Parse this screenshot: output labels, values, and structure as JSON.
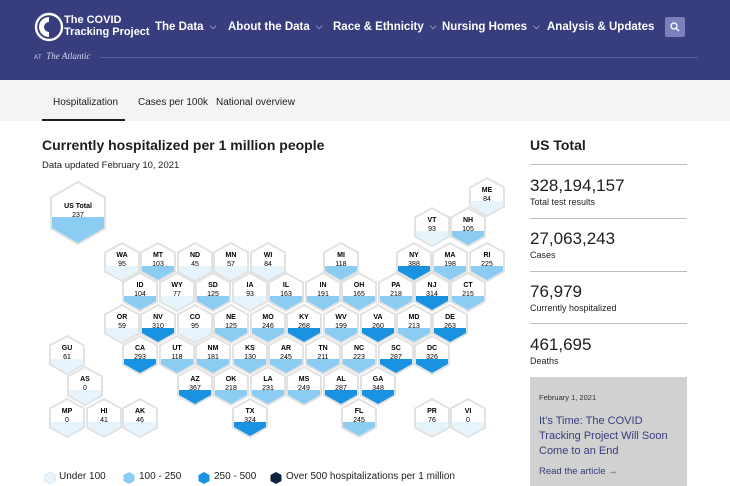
{
  "header": {
    "logo_text": "The COVID Tracking Project",
    "at_label": "AT",
    "publisher": "The Atlantic",
    "nav": [
      {
        "label": "The Data"
      },
      {
        "label": "About the Data"
      },
      {
        "label": "Race & Ethnicity"
      },
      {
        "label": "Nursing Homes"
      },
      {
        "label": "Analysis & Updates"
      }
    ],
    "icons": {
      "logo": "ctp-circle-logo",
      "search": "search-icon",
      "chevron": "chevron-down-icon"
    }
  },
  "tabs": [
    {
      "label": "Hospitalization",
      "active": true
    },
    {
      "label": "Cases per 100k",
      "active": false
    },
    {
      "label": "National overview",
      "active": false
    }
  ],
  "map": {
    "title": "Currently hospitalized per 1 million people",
    "updated": "Data updated February 10, 2021",
    "colors": {
      "under100": "#e8f4fc",
      "100to250": "#8dccf2",
      "250to500": "#1a92e2",
      "over500": "#0e2340",
      "outline": "#e2e2e2"
    },
    "legend": [
      {
        "label": "Under 100",
        "bin": "under100"
      },
      {
        "label": "100 - 250",
        "bin": "100to250"
      },
      {
        "label": "250 - 500",
        "bin": "250to500"
      },
      {
        "label": "Over 500 hospitalizations per 1 million",
        "bin": "over500"
      }
    ],
    "us_total": {
      "label": "US Total",
      "value": "237"
    },
    "states": [
      {
        "abbr": "ME",
        "value": "84"
      },
      {
        "abbr": "VT",
        "value": "93"
      },
      {
        "abbr": "NH",
        "value": "105"
      },
      {
        "abbr": "WA",
        "value": "95"
      },
      {
        "abbr": "MT",
        "value": "103"
      },
      {
        "abbr": "ND",
        "value": "45"
      },
      {
        "abbr": "MN",
        "value": "57"
      },
      {
        "abbr": "WI",
        "value": "84"
      },
      {
        "abbr": "MI",
        "value": "118"
      },
      {
        "abbr": "NY",
        "value": "388"
      },
      {
        "abbr": "MA",
        "value": "198"
      },
      {
        "abbr": "RI",
        "value": "225"
      },
      {
        "abbr": "ID",
        "value": "104"
      },
      {
        "abbr": "WY",
        "value": "77"
      },
      {
        "abbr": "SD",
        "value": "125"
      },
      {
        "abbr": "IA",
        "value": "93"
      },
      {
        "abbr": "IL",
        "value": "163"
      },
      {
        "abbr": "IN",
        "value": "191"
      },
      {
        "abbr": "OH",
        "value": "165"
      },
      {
        "abbr": "PA",
        "value": "218"
      },
      {
        "abbr": "NJ",
        "value": "314"
      },
      {
        "abbr": "CT",
        "value": "215"
      },
      {
        "abbr": "OR",
        "value": "59"
      },
      {
        "abbr": "NV",
        "value": "310"
      },
      {
        "abbr": "CO",
        "value": "95"
      },
      {
        "abbr": "NE",
        "value": "125"
      },
      {
        "abbr": "MO",
        "value": "246"
      },
      {
        "abbr": "KY",
        "value": "268"
      },
      {
        "abbr": "WV",
        "value": "199"
      },
      {
        "abbr": "VA",
        "value": "260"
      },
      {
        "abbr": "MD",
        "value": "213"
      },
      {
        "abbr": "DE",
        "value": "263"
      },
      {
        "abbr": "GU",
        "value": "61"
      },
      {
        "abbr": "CA",
        "value": "293"
      },
      {
        "abbr": "UT",
        "value": "118"
      },
      {
        "abbr": "NM",
        "value": "181"
      },
      {
        "abbr": "KS",
        "value": "130"
      },
      {
        "abbr": "AR",
        "value": "245"
      },
      {
        "abbr": "TN",
        "value": "211"
      },
      {
        "abbr": "NC",
        "value": "223"
      },
      {
        "abbr": "SC",
        "value": "287"
      },
      {
        "abbr": "DC",
        "value": "326"
      },
      {
        "abbr": "AS",
        "value": "0"
      },
      {
        "abbr": "AZ",
        "value": "367"
      },
      {
        "abbr": "OK",
        "value": "218"
      },
      {
        "abbr": "LA",
        "value": "231"
      },
      {
        "abbr": "MS",
        "value": "249"
      },
      {
        "abbr": "AL",
        "value": "287"
      },
      {
        "abbr": "GA",
        "value": "348"
      },
      {
        "abbr": "MP",
        "value": "0"
      },
      {
        "abbr": "HI",
        "value": "41"
      },
      {
        "abbr": "AK",
        "value": "46"
      },
      {
        "abbr": "TX",
        "value": "324"
      },
      {
        "abbr": "FL",
        "value": "245"
      },
      {
        "abbr": "PR",
        "value": "76"
      },
      {
        "abbr": "VI",
        "value": "0"
      }
    ]
  },
  "us_totals": {
    "title": "US Total",
    "stats": [
      {
        "value": "328,194,157",
        "label": "Total test results"
      },
      {
        "value": "27,063,243",
        "label": "Cases"
      },
      {
        "value": "76,979",
        "label": "Currently hospitalized"
      },
      {
        "value": "461,695",
        "label": "Deaths"
      }
    ]
  },
  "article": {
    "date": "February 1, 2021",
    "title": "It’s Time: The COVID Tracking Project Will Soon Come to an End",
    "link": "Read the article →"
  }
}
